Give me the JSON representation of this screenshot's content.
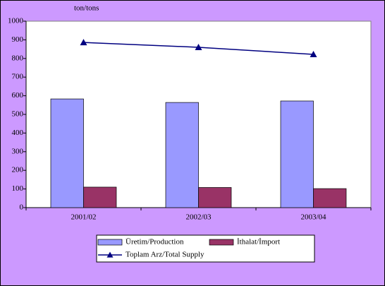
{
  "chart_data": {
    "type": "bar",
    "ylabel": "ton/tons",
    "categories": [
      "2001/02",
      "2002/03",
      "2003/04"
    ],
    "series": [
      {
        "name": "Üretim/Production",
        "type": "bar",
        "color": "#9999ff",
        "values": [
          583,
          564,
          572
        ]
      },
      {
        "name": "İthalat/İmport",
        "type": "bar",
        "color": "#993366",
        "values": [
          110,
          108,
          102
        ]
      },
      {
        "name": "Toplam Arz/Total Supply",
        "type": "line",
        "color": "#000080",
        "values": [
          886,
          860,
          822
        ]
      }
    ],
    "ylim": [
      0,
      1000
    ],
    "yticks": [
      0,
      100,
      200,
      300,
      400,
      500,
      600,
      700,
      800,
      900,
      1000
    ],
    "grid": false,
    "legend": "bottom"
  }
}
